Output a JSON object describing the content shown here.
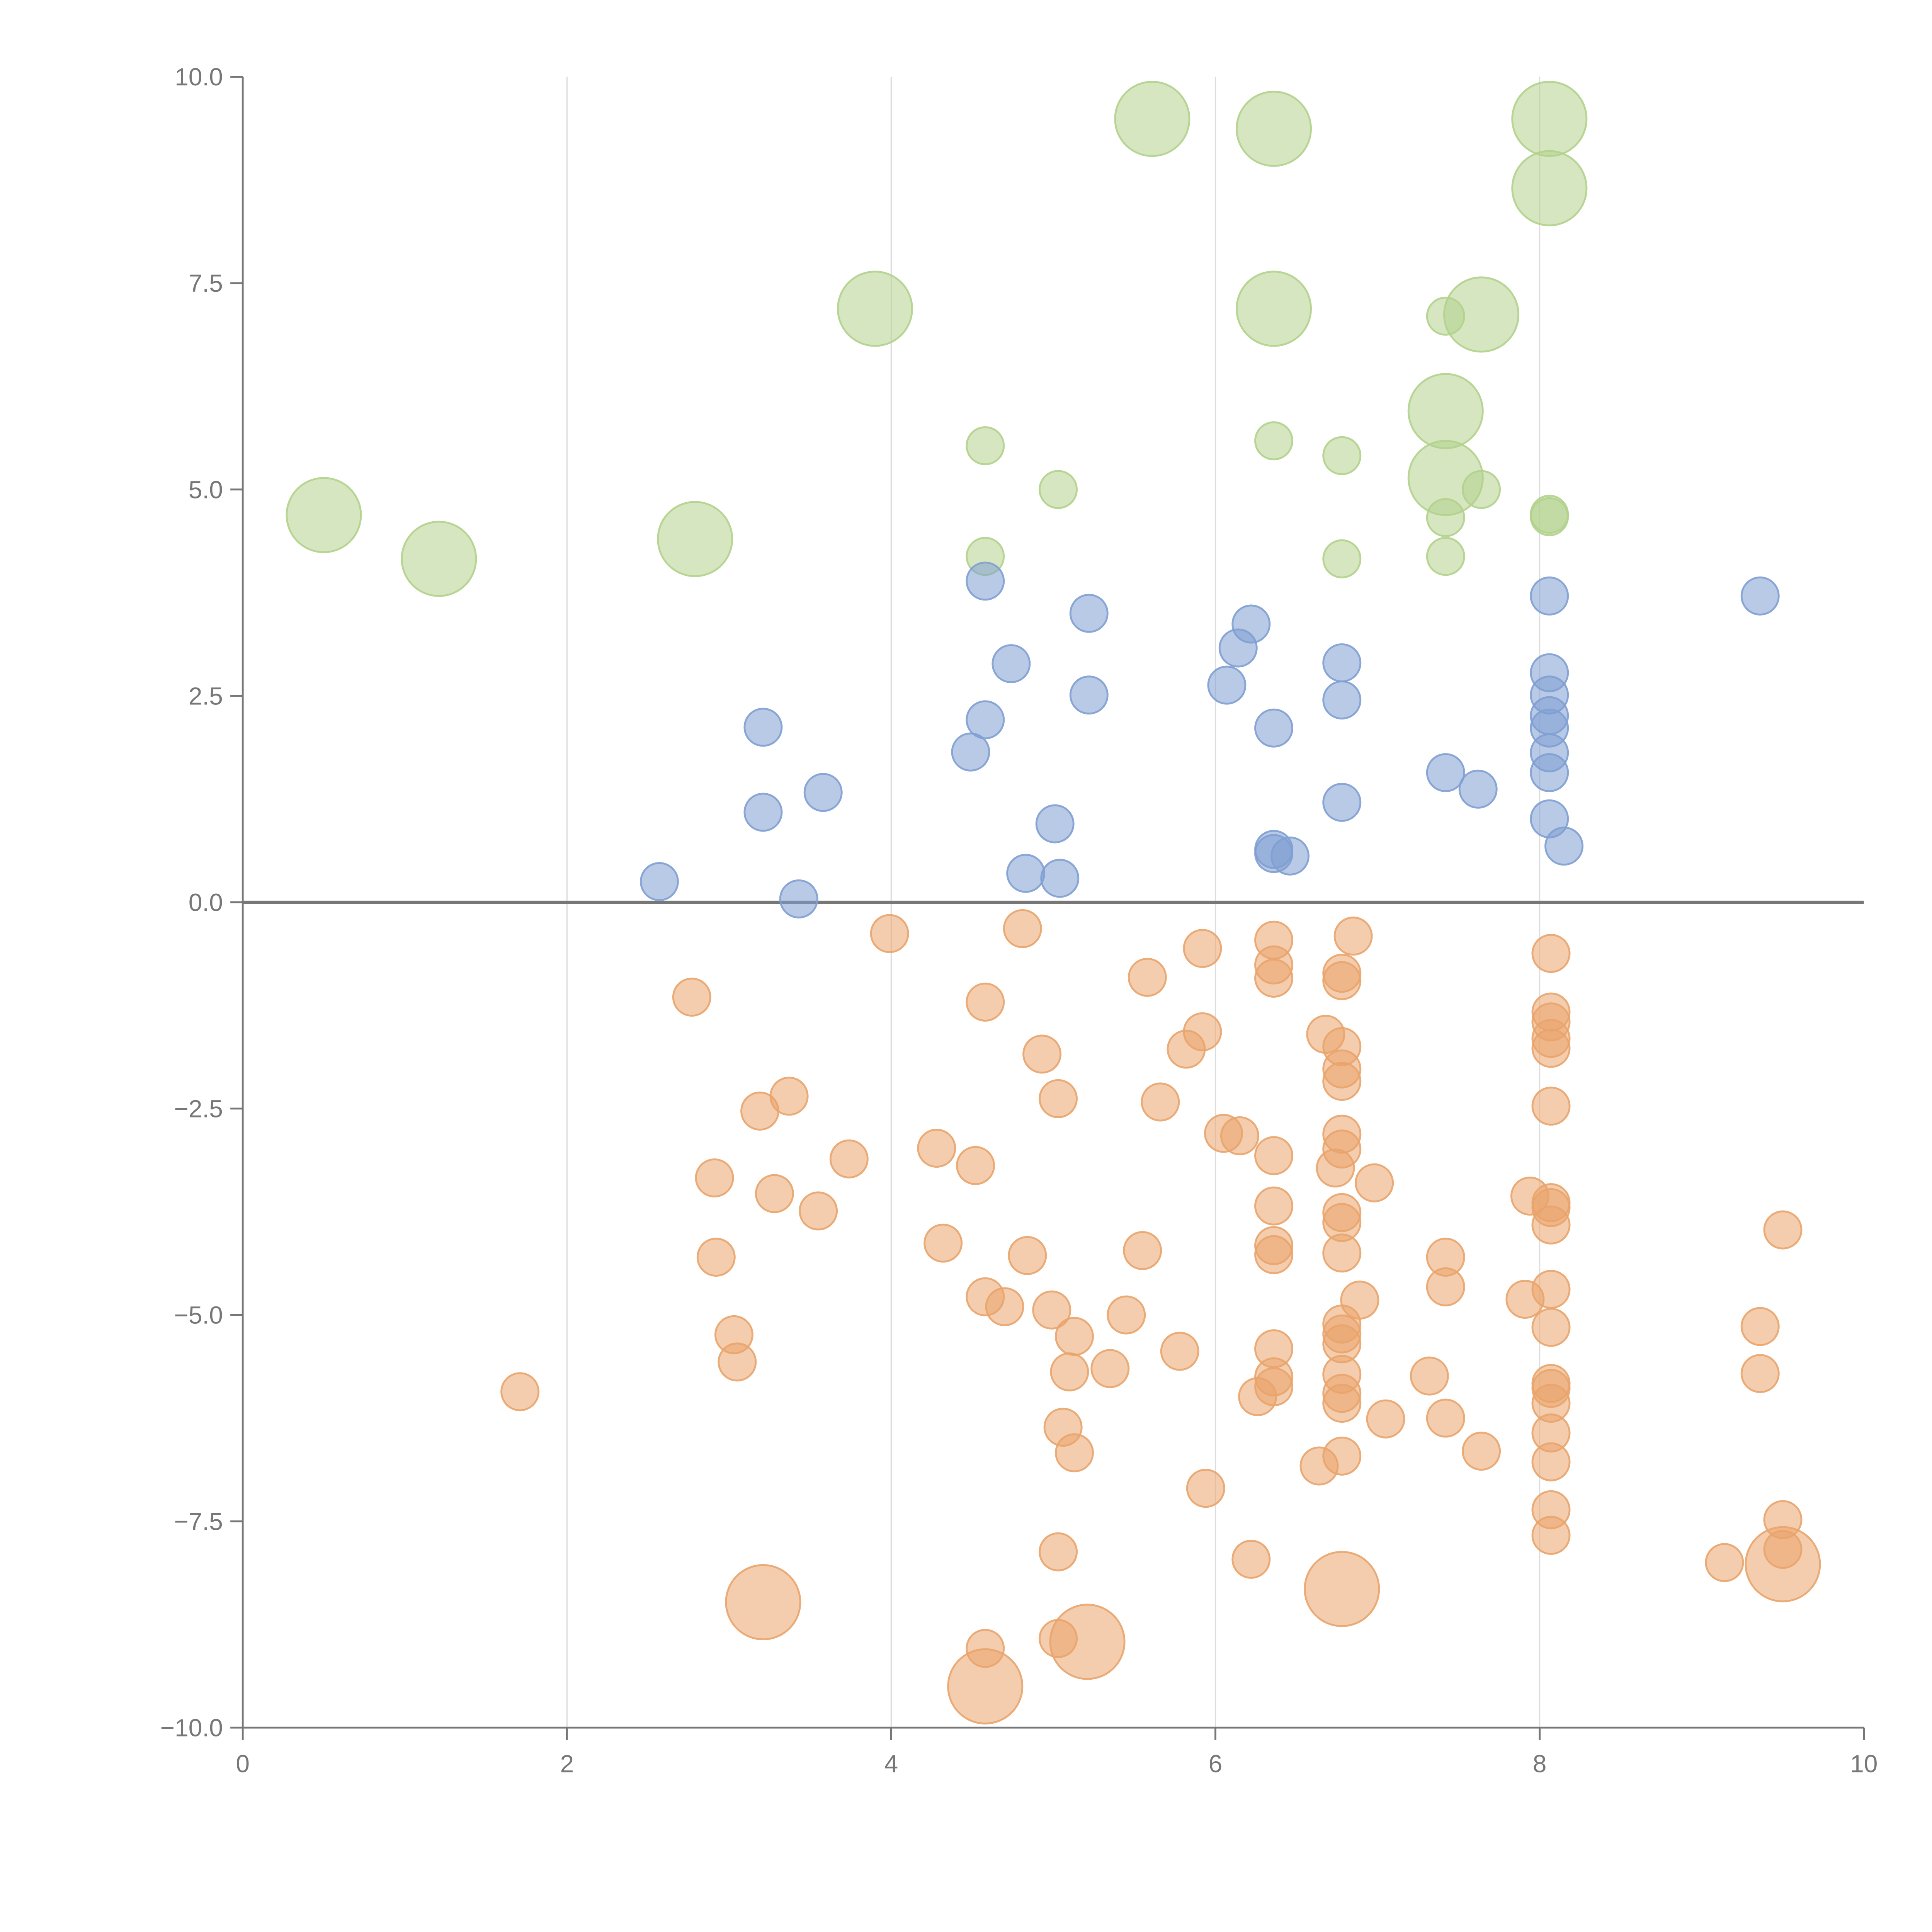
{
  "chart_data": {
    "type": "scatter",
    "title": "",
    "xlabel": "",
    "ylabel": "",
    "xlim": [
      0,
      10
    ],
    "ylim": [
      -10,
      10
    ],
    "xticks": [
      "0",
      "2",
      "4",
      "6",
      "8",
      "10"
    ],
    "xtick_values": [
      0,
      2,
      4,
      6,
      8,
      10
    ],
    "yticks": [
      "10.0",
      "7.5",
      "5.0",
      "2.5",
      "0.0",
      "−2.5",
      "−5.0",
      "−7.5",
      "−10.0"
    ],
    "ytick_values": [
      10,
      7.5,
      5,
      2.5,
      0,
      -2.5,
      -5,
      -7.5,
      -10
    ],
    "grid": "vertical",
    "reference_line_y": 0,
    "point_format": "[x, y, size(1=small,2=large)]",
    "series": [
      {
        "name": "green",
        "color": "#b3d18c",
        "points": [
          [
            0.5,
            4.69,
            2
          ],
          [
            1.21,
            4.16,
            2
          ],
          [
            2.79,
            4.4,
            2
          ],
          [
            3.9,
            7.19,
            2
          ],
          [
            5.61,
            9.49,
            2
          ],
          [
            6.36,
            9.37,
            2
          ],
          [
            8.06,
            9.49,
            2
          ],
          [
            8.06,
            8.65,
            2
          ],
          [
            6.36,
            7.19,
            2
          ],
          [
            7.64,
            7.12,
            2
          ],
          [
            7.42,
            5.95,
            2
          ],
          [
            7.42,
            5.14,
            2
          ],
          [
            4.58,
            5.53,
            1
          ],
          [
            5.03,
            5.0,
            1
          ],
          [
            4.58,
            4.19,
            1
          ],
          [
            6.36,
            5.59,
            1
          ],
          [
            6.78,
            5.41,
            1
          ],
          [
            6.78,
            4.16,
            1
          ],
          [
            7.42,
            7.1,
            1
          ],
          [
            7.42,
            4.66,
            1
          ],
          [
            7.42,
            4.19,
            1
          ],
          [
            7.64,
            5.0,
            1
          ],
          [
            8.06,
            4.7,
            1
          ],
          [
            8.06,
            4.67,
            1
          ]
        ]
      },
      {
        "name": "blue",
        "color": "#7f9fd2",
        "points": [
          [
            2.57,
            0.25,
            1
          ],
          [
            3.21,
            2.12,
            1
          ],
          [
            3.21,
            1.09,
            1
          ],
          [
            3.43,
            0.04,
            1
          ],
          [
            3.58,
            1.33,
            1
          ],
          [
            4.49,
            1.82,
            1
          ],
          [
            4.58,
            3.89,
            1
          ],
          [
            4.58,
            2.21,
            1
          ],
          [
            4.74,
            2.89,
            1
          ],
          [
            4.83,
            0.35,
            1
          ],
          [
            5.01,
            0.95,
            1
          ],
          [
            5.04,
            0.29,
            1
          ],
          [
            5.22,
            3.5,
            1
          ],
          [
            5.22,
            2.51,
            1
          ],
          [
            6.07,
            2.63,
            1
          ],
          [
            6.14,
            3.08,
            1
          ],
          [
            6.22,
            3.37,
            1
          ],
          [
            6.36,
            2.11,
            1
          ],
          [
            6.36,
            0.64,
            1
          ],
          [
            6.36,
            0.59,
            1
          ],
          [
            6.46,
            0.56,
            1
          ],
          [
            6.78,
            2.9,
            1
          ],
          [
            6.78,
            2.45,
            1
          ],
          [
            6.78,
            1.21,
            1
          ],
          [
            7.42,
            1.57,
            1
          ],
          [
            7.62,
            1.37,
            1
          ],
          [
            8.06,
            3.71,
            1
          ],
          [
            8.06,
            2.78,
            1
          ],
          [
            8.06,
            2.51,
            1
          ],
          [
            8.06,
            2.26,
            1
          ],
          [
            8.06,
            2.11,
            1
          ],
          [
            8.06,
            1.81,
            1
          ],
          [
            8.06,
            1.57,
            1
          ],
          [
            8.06,
            1.01,
            1
          ],
          [
            8.15,
            0.68,
            1
          ],
          [
            9.36,
            3.71,
            1
          ]
        ]
      },
      {
        "name": "orange",
        "color": "#e9a46c",
        "points": [
          [
            3.99,
            -0.38,
            1
          ],
          [
            4.81,
            -0.32,
            1
          ],
          [
            2.77,
            -1.15,
            1
          ],
          [
            4.58,
            -1.21,
            1
          ],
          [
            5.92,
            -0.56,
            1
          ],
          [
            5.58,
            -0.91,
            1
          ],
          [
            6.36,
            -0.46,
            1
          ],
          [
            6.36,
            -0.76,
            1
          ],
          [
            6.36,
            -0.92,
            1
          ],
          [
            6.85,
            -0.41,
            1
          ],
          [
            6.78,
            -0.86,
            1
          ],
          [
            6.78,
            -0.95,
            1
          ],
          [
            8.07,
            -0.62,
            1
          ],
          [
            5.92,
            -1.57,
            1
          ],
          [
            5.82,
            -1.78,
            1
          ],
          [
            4.93,
            -1.84,
            1
          ],
          [
            6.68,
            -1.6,
            1
          ],
          [
            6.78,
            -1.75,
            1
          ],
          [
            6.78,
            -2.02,
            1
          ],
          [
            6.78,
            -2.17,
            1
          ],
          [
            8.07,
            -1.33,
            1
          ],
          [
            8.07,
            -1.45,
            1
          ],
          [
            8.07,
            -1.65,
            1
          ],
          [
            8.07,
            -1.77,
            1
          ],
          [
            8.07,
            -2.47,
            1
          ],
          [
            3.37,
            -2.35,
            1
          ],
          [
            3.19,
            -2.53,
            1
          ],
          [
            5.03,
            -2.38,
            1
          ],
          [
            5.66,
            -2.42,
            1
          ],
          [
            2.91,
            -3.34,
            1
          ],
          [
            3.28,
            -3.53,
            1
          ],
          [
            3.55,
            -3.74,
            1
          ],
          [
            3.74,
            -3.11,
            1
          ],
          [
            4.28,
            -2.98,
            1
          ],
          [
            4.52,
            -3.19,
            1
          ],
          [
            6.05,
            -2.8,
            1
          ],
          [
            6.15,
            -2.83,
            1
          ],
          [
            6.36,
            -3.07,
            1
          ],
          [
            6.36,
            -3.68,
            1
          ],
          [
            6.36,
            -4.16,
            1
          ],
          [
            6.36,
            -4.27,
            1
          ],
          [
            6.74,
            -3.22,
            1
          ],
          [
            6.78,
            -2.81,
            1
          ],
          [
            6.78,
            -2.99,
            1
          ],
          [
            6.78,
            -3.76,
            1
          ],
          [
            6.78,
            -3.88,
            1
          ],
          [
            6.78,
            -4.25,
            1
          ],
          [
            6.98,
            -3.4,
            1
          ],
          [
            7.94,
            -3.56,
            1
          ],
          [
            8.07,
            -3.64,
            1
          ],
          [
            8.07,
            -3.7,
            1
          ],
          [
            8.07,
            -3.91,
            1
          ],
          [
            9.5,
            -3.97,
            1
          ],
          [
            2.92,
            -4.3,
            1
          ],
          [
            4.32,
            -4.13,
            1
          ],
          [
            4.84,
            -4.28,
            1
          ],
          [
            5.55,
            -4.22,
            1
          ],
          [
            4.58,
            -4.78,
            1
          ],
          [
            4.7,
            -4.9,
            1
          ],
          [
            4.99,
            -4.94,
            1
          ],
          [
            5.45,
            -5.0,
            1
          ],
          [
            5.13,
            -5.26,
            1
          ],
          [
            3.03,
            -5.24,
            1
          ],
          [
            3.05,
            -5.57,
            1
          ],
          [
            1.71,
            -5.93,
            1
          ],
          [
            5.1,
            -5.69,
            1
          ],
          [
            5.35,
            -5.65,
            1
          ],
          [
            5.78,
            -5.44,
            1
          ],
          [
            6.36,
            -5.41,
            1
          ],
          [
            6.36,
            -5.75,
            1
          ],
          [
            6.36,
            -5.87,
            1
          ],
          [
            6.26,
            -5.99,
            1
          ],
          [
            6.89,
            -4.82,
            1
          ],
          [
            6.78,
            -5.11,
            1
          ],
          [
            6.78,
            -5.23,
            1
          ],
          [
            6.78,
            -5.35,
            1
          ],
          [
            6.78,
            -5.72,
            1
          ],
          [
            6.78,
            -5.95,
            1
          ],
          [
            6.78,
            -6.07,
            1
          ],
          [
            6.78,
            -6.71,
            1
          ],
          [
            7.05,
            -6.26,
            1
          ],
          [
            6.64,
            -6.83,
            1
          ],
          [
            7.32,
            -5.74,
            1
          ],
          [
            7.42,
            -4.3,
            1
          ],
          [
            7.42,
            -4.66,
            1
          ],
          [
            7.42,
            -6.25,
            1
          ],
          [
            7.64,
            -6.65,
            1
          ],
          [
            7.91,
            -4.81,
            1
          ],
          [
            8.07,
            -4.69,
            1
          ],
          [
            8.07,
            -5.15,
            1
          ],
          [
            8.07,
            -5.83,
            1
          ],
          [
            8.07,
            -5.89,
            1
          ],
          [
            8.07,
            -6.07,
            1
          ],
          [
            8.07,
            -6.43,
            1
          ],
          [
            8.07,
            -6.78,
            1
          ],
          [
            8.07,
            -7.36,
            1
          ],
          [
            8.07,
            -7.67,
            1
          ],
          [
            9.36,
            -5.14,
            1
          ],
          [
            9.36,
            -5.71,
            1
          ],
          [
            5.06,
            -6.36,
            1
          ],
          [
            5.13,
            -6.67,
            1
          ],
          [
            5.94,
            -7.1,
            1
          ],
          [
            5.03,
            -7.87,
            1
          ],
          [
            6.22,
            -7.96,
            1
          ],
          [
            4.58,
            -9.04,
            1
          ],
          [
            5.03,
            -8.92,
            1
          ],
          [
            9.14,
            -8.0,
            1
          ],
          [
            9.5,
            -7.48,
            1
          ],
          [
            9.5,
            -7.84,
            1
          ],
          [
            3.21,
            -8.48,
            2
          ],
          [
            4.58,
            -9.5,
            2
          ],
          [
            5.21,
            -8.96,
            2
          ],
          [
            6.78,
            -8.32,
            2
          ],
          [
            9.5,
            -8.02,
            2
          ]
        ]
      }
    ]
  }
}
